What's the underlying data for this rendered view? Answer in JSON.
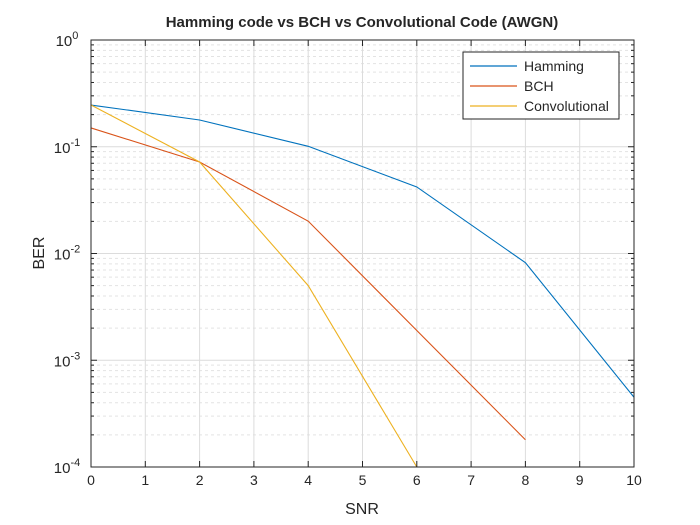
{
  "chart_data": {
    "type": "line",
    "title": "Hamming code vs BCH vs Convolutional Code (AWGN)",
    "xlabel": "SNR",
    "ylabel": "BER",
    "xlim": [
      0,
      10
    ],
    "ylim": [
      0.0001,
      1
    ],
    "yscale": "log",
    "grid": true,
    "minor_grid": true,
    "legend_position": "top-right",
    "x_ticks": [
      "0",
      "1",
      "2",
      "3",
      "4",
      "5",
      "6",
      "7",
      "8",
      "9",
      "10"
    ],
    "y_ticks": [
      {
        "base": "10",
        "exp": "0"
      },
      {
        "base": "10",
        "exp": "-1"
      },
      {
        "base": "10",
        "exp": "-2"
      },
      {
        "base": "10",
        "exp": "-3"
      },
      {
        "base": "10",
        "exp": "-4"
      }
    ],
    "series": [
      {
        "name": "Hamming",
        "color": "#0072BD",
        "x": [
          0,
          2,
          4,
          6,
          8,
          10
        ],
        "y": [
          0.246,
          0.178,
          0.101,
          0.042,
          0.0082,
          0.00045
        ]
      },
      {
        "name": "BCH",
        "color": "#D95319",
        "x": [
          0,
          2,
          4,
          6,
          8
        ],
        "y": [
          0.15,
          0.072,
          0.0201,
          0.0019,
          0.00018
        ]
      },
      {
        "name": "Convolutional",
        "color": "#EDB120",
        "x": [
          0,
          2,
          4,
          6
        ],
        "y": [
          0.246,
          0.072,
          0.005,
          0.0001
        ]
      }
    ]
  }
}
